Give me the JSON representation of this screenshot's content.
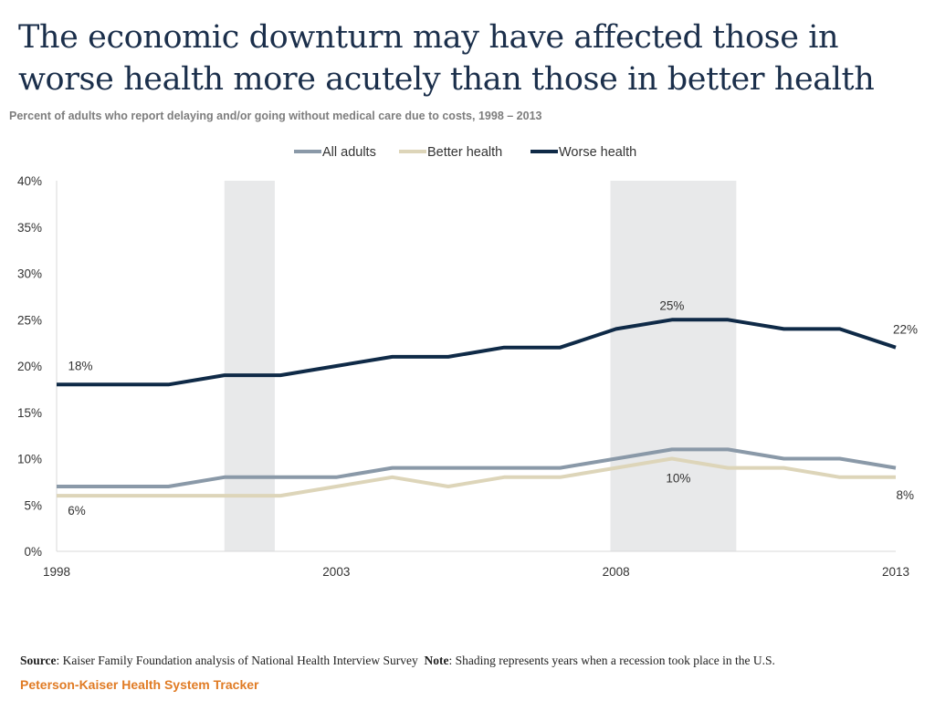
{
  "title": "The economic downturn may have affected those in worse health more acutely than those in better health",
  "subtitle": "Percent of adults who report delaying and/or going without medical care due to costs, 1998 – 2013",
  "chart_data": {
    "type": "line",
    "title": "The economic downturn may have affected those in worse health more acutely than those in better health",
    "subtitle": "Percent of adults who report delaying and/or going without medical care due to costs, 1998 – 2013",
    "xlabel": "",
    "ylabel": "",
    "x": [
      1998,
      1999,
      2000,
      2001,
      2002,
      2003,
      2004,
      2005,
      2006,
      2007,
      2008,
      2009,
      2010,
      2011,
      2012,
      2013
    ],
    "xticks": [
      1998,
      2003,
      2008,
      2013
    ],
    "xtick_labels": [
      "1998",
      "2003",
      "2008",
      "2013"
    ],
    "yticks": [
      0,
      5,
      10,
      15,
      20,
      25,
      30,
      35,
      40
    ],
    "ytick_labels": [
      "0%",
      "5%",
      "10%",
      "15%",
      "20%",
      "25%",
      "30%",
      "35%",
      "40%"
    ],
    "ylim": [
      0,
      40
    ],
    "grid": false,
    "legend_position": "top-center",
    "series": [
      {
        "name": "All adults",
        "color": "#8a99a8",
        "values": [
          7,
          7,
          7,
          8,
          8,
          8,
          9,
          9,
          9,
          9,
          10,
          11,
          11,
          10,
          10,
          9
        ]
      },
      {
        "name": "Better health",
        "color": "#ddd5b9",
        "values": [
          6,
          6,
          6,
          6,
          6,
          7,
          8,
          7,
          8,
          8,
          9,
          10,
          9,
          9,
          8,
          8
        ]
      },
      {
        "name": "Worse health",
        "color": "#0f2a47",
        "values": [
          18,
          18,
          18,
          19,
          19,
          20,
          21,
          21,
          22,
          22,
          24,
          25,
          25,
          24,
          24,
          22
        ]
      }
    ],
    "recession_shading": [
      {
        "start": 2001,
        "end": 2001.9
      },
      {
        "start": 2007.9,
        "end": 2010.15
      }
    ],
    "shading_color": "#e8e9ea",
    "annotations": [
      {
        "series": "Worse health",
        "x": 1998,
        "text": "18%"
      },
      {
        "series": "Better health",
        "x": 1998,
        "text": "6%"
      },
      {
        "series": "Worse health",
        "x": 2009,
        "text": "25%"
      },
      {
        "series": "Better health",
        "x": 2009,
        "text": "10%"
      },
      {
        "series": "Worse health",
        "x": 2013,
        "text": "22%"
      },
      {
        "series": "Better health",
        "x": 2013,
        "text": "8%"
      }
    ]
  },
  "footer": {
    "source_label": "Source",
    "source_text": ": Kaiser Family Foundation analysis of National Health Interview Survey",
    "note_label": "Note",
    "note_text": ": Shading represents years when a recession took place in the U.S.",
    "brand": "Peterson-Kaiser Health System Tracker"
  }
}
